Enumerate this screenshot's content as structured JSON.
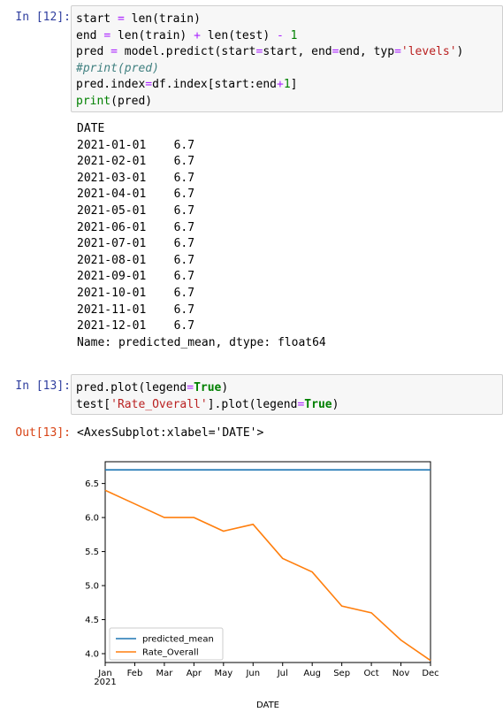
{
  "cell12": {
    "prompt": "In [12]:",
    "code": [
      [
        [
          "start ",
          ""
        ],
        [
          "=",
          "op"
        ],
        [
          " len(train)",
          ""
        ]
      ],
      [
        [
          "end ",
          ""
        ],
        [
          "=",
          "op"
        ],
        [
          " len(train) ",
          ""
        ],
        [
          "+",
          "op"
        ],
        [
          " len(test) ",
          ""
        ],
        [
          "-",
          "op"
        ],
        [
          " ",
          ""
        ],
        [
          "1",
          "num"
        ]
      ],
      [
        [
          "pred ",
          ""
        ],
        [
          "=",
          "op"
        ],
        [
          " model.predict(start",
          ""
        ],
        [
          "=",
          "op"
        ],
        [
          "start, end",
          ""
        ],
        [
          "=",
          "op"
        ],
        [
          "end, typ",
          ""
        ],
        [
          "=",
          "op"
        ],
        [
          "'levels'",
          "str"
        ],
        [
          ")",
          ""
        ]
      ],
      [
        [
          "#print(pred)",
          "cmt"
        ]
      ],
      [
        [
          "pred.index",
          ""
        ],
        [
          "=",
          "op"
        ],
        [
          "df.index[start:end",
          ""
        ],
        [
          "+",
          "op"
        ],
        [
          "1",
          "num"
        ],
        [
          "]",
          ""
        ]
      ],
      [
        [
          "print",
          "bi"
        ],
        [
          "(pred)",
          ""
        ]
      ]
    ],
    "output": [
      "DATE",
      "2021-01-01    6.7",
      "2021-02-01    6.7",
      "2021-03-01    6.7",
      "2021-04-01    6.7",
      "2021-05-01    6.7",
      "2021-06-01    6.7",
      "2021-07-01    6.7",
      "2021-08-01    6.7",
      "2021-09-01    6.7",
      "2021-10-01    6.7",
      "2021-11-01    6.7",
      "2021-12-01    6.7",
      "Name: predicted_mean, dtype: float64"
    ]
  },
  "cell13": {
    "prompt": "In [13]:",
    "code": [
      [
        [
          "pred.plot(legend",
          ""
        ],
        [
          "=",
          "op"
        ],
        [
          "True",
          "kw"
        ],
        [
          ")",
          ""
        ]
      ],
      [
        [
          "test[",
          ""
        ],
        [
          "'Rate_Overall'",
          "str"
        ],
        [
          "].plot(legend",
          ""
        ],
        [
          "=",
          "op"
        ],
        [
          "True",
          "kw"
        ],
        [
          ")",
          ""
        ]
      ]
    ],
    "out_prompt": "Out[13]:",
    "out_text": "<AxesSubplot:xlabel='DATE'>"
  },
  "chart_data": {
    "type": "line",
    "x": [
      "2021-01",
      "2021-02",
      "2021-03",
      "2021-04",
      "2021-05",
      "2021-06",
      "2021-07",
      "2021-08",
      "2021-09",
      "2021-10",
      "2021-11",
      "2021-12"
    ],
    "x_tick_labels": [
      "Jan\n2021",
      "Feb",
      "Mar",
      "Apr",
      "May",
      "Jun",
      "Jul",
      "Aug",
      "Sep",
      "Oct",
      "Nov",
      "Dec"
    ],
    "series": [
      {
        "name": "predicted_mean",
        "color": "#1f77b4",
        "values": [
          6.7,
          6.7,
          6.7,
          6.7,
          6.7,
          6.7,
          6.7,
          6.7,
          6.7,
          6.7,
          6.7,
          6.7
        ]
      },
      {
        "name": "Rate_Overall",
        "color": "#ff7f0e",
        "values": [
          6.4,
          6.2,
          6.0,
          6.0,
          5.8,
          5.9,
          5.4,
          5.2,
          4.7,
          4.6,
          4.2,
          3.9
        ]
      }
    ],
    "y_ticks": [
      "4.0",
      "4.5",
      "5.0",
      "5.5",
      "6.0",
      "6.5"
    ],
    "ylim": [
      3.87,
      6.82
    ],
    "xlabel": "DATE",
    "legend": "lower-left",
    "grid": false
  }
}
